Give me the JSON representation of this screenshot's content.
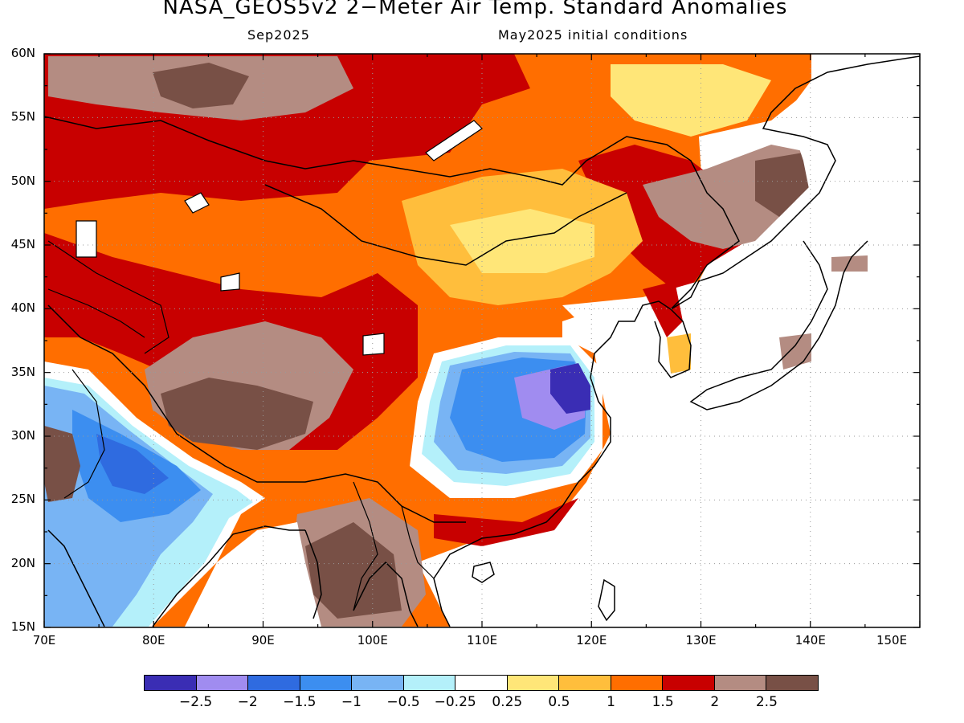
{
  "title": "NASA_GEOS5v2 2−Meter Air Temp. Standard Anomalies",
  "subtitle_left": "Sep2025",
  "subtitle_right": "May2025 initial conditions",
  "lat_labels": [
    "60N",
    "55N",
    "50N",
    "45N",
    "40N",
    "35N",
    "30N",
    "25N",
    "20N",
    "15N"
  ],
  "lon_labels": [
    "70E",
    "80E",
    "90E",
    "100E",
    "110E",
    "120E",
    "130E",
    "140E",
    "150E"
  ],
  "colorbar": {
    "colors": [
      "#3a2db4",
      "#a08cf0",
      "#2f6be0",
      "#3c8ef0",
      "#78b4f4",
      "#b4f0fa",
      "#ffffff",
      "#ffe678",
      "#ffbe3c",
      "#ff6e00",
      "#c80000",
      "#b48c82",
      "#785046"
    ],
    "labels": [
      "−2.5",
      "−2",
      "−1.5",
      "−1",
      "−0.5",
      "−0.25",
      "0.25",
      "0.5",
      "1",
      "1.5",
      "2",
      "2.5"
    ]
  }
}
